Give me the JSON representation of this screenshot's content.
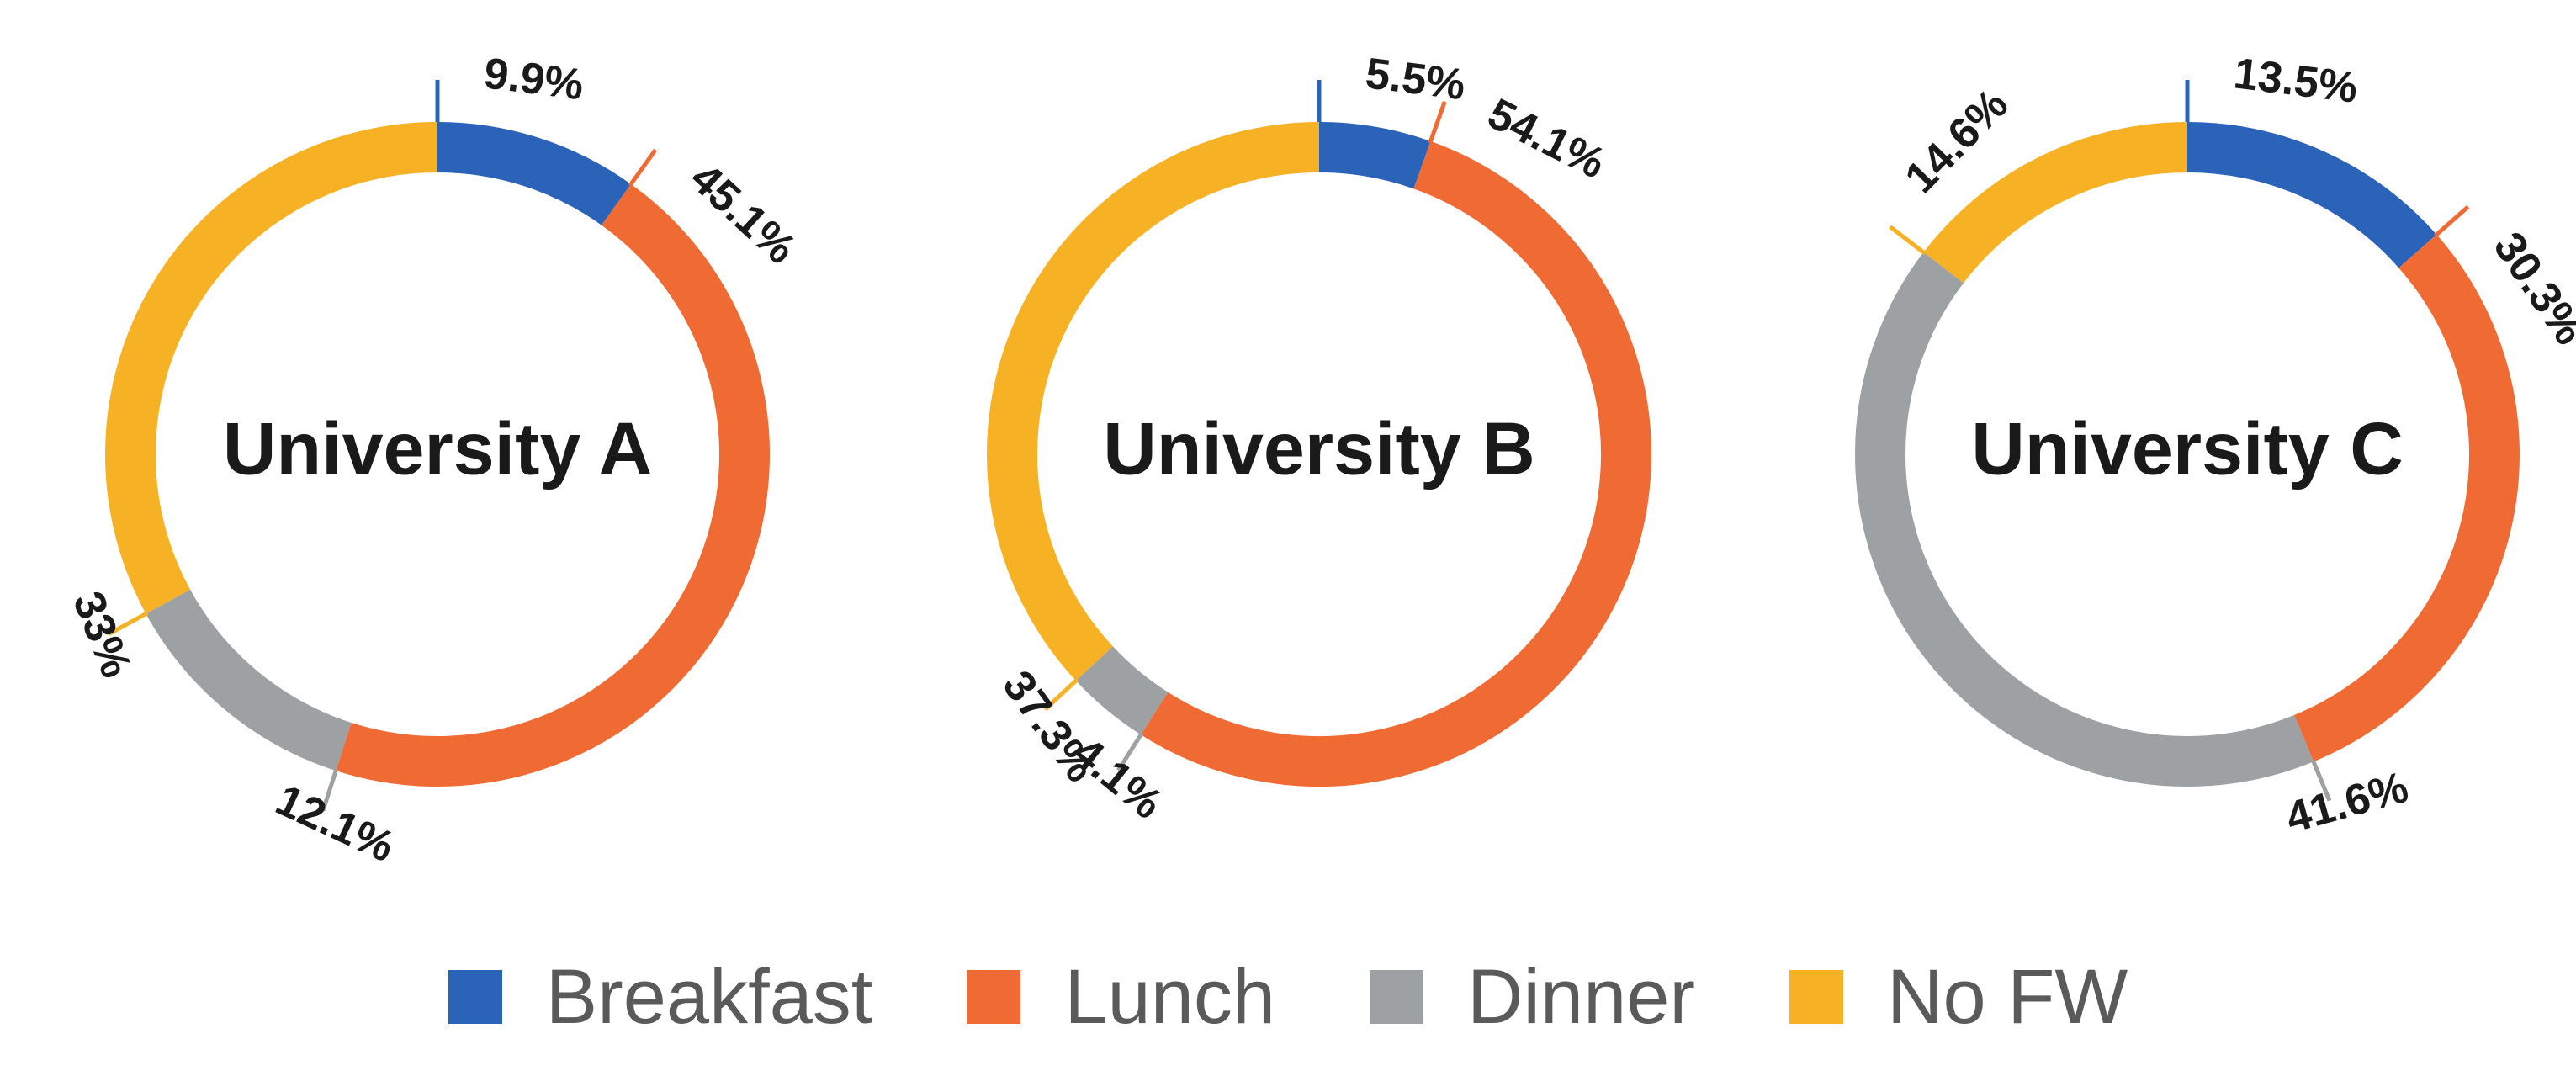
{
  "chart_data": [
    {
      "type": "pie",
      "variant": "donut",
      "title": "University A",
      "categories": [
        "Breakfast",
        "Lunch",
        "Dinner",
        "No FW"
      ],
      "values": [
        9.9,
        45.1,
        12.1,
        33
      ],
      "labels": [
        "9.9%",
        "45.1%",
        "12.1%",
        "33%"
      ]
    },
    {
      "type": "pie",
      "variant": "donut",
      "title": "University B",
      "categories": [
        "Breakfast",
        "Lunch",
        "Dinner",
        "No FW"
      ],
      "values": [
        5.5,
        54.1,
        4.1,
        37.3
      ],
      "labels": [
        "5.5%",
        "54.1%",
        "4.1%",
        "37.3%"
      ]
    },
    {
      "type": "pie",
      "variant": "donut",
      "title": "University C",
      "categories": [
        "Breakfast",
        "Lunch",
        "Dinner",
        "No FW"
      ],
      "values": [
        13.5,
        30.3,
        41.6,
        14.6
      ],
      "labels": [
        "13.5%",
        "30.3%",
        "41.6%",
        "14.6%"
      ]
    }
  ],
  "colors": {
    "Breakfast": "#2b63b8",
    "Lunch": "#f06a34",
    "Dinner": "#9ea1a4",
    "No FW": "#f7b125"
  },
  "legend": {
    "placement": "bottom",
    "items": [
      {
        "label": "Breakfast",
        "color": "#2b63b8"
      },
      {
        "label": "Lunch",
        "color": "#f06a34"
      },
      {
        "label": "Dinner",
        "color": "#9ea1a4"
      },
      {
        "label": "No FW",
        "color": "#f7b125"
      }
    ]
  }
}
